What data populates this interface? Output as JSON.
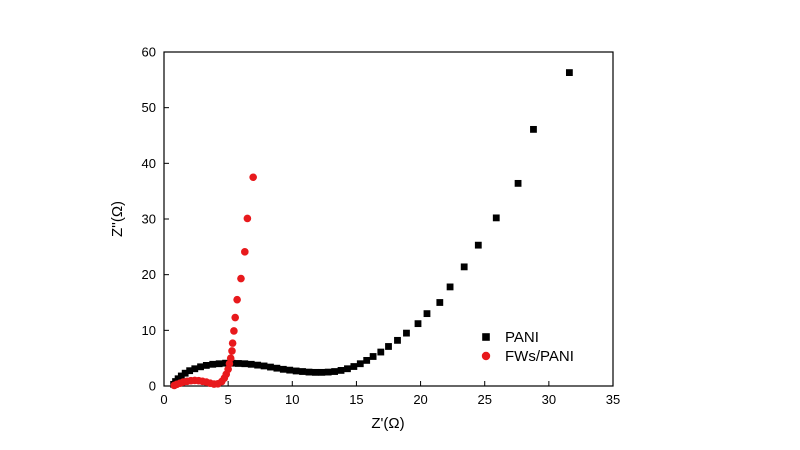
{
  "chart_data": {
    "type": "scatter",
    "title": "",
    "xlabel": "Z'(Ω)",
    "ylabel": "Z''(Ω)",
    "xlim": [
      0,
      35
    ],
    "ylim": [
      0,
      60
    ],
    "x_ticks": [
      0,
      5,
      10,
      15,
      20,
      25,
      30,
      35
    ],
    "y_ticks": [
      0,
      10,
      20,
      30,
      40,
      50,
      60
    ],
    "x_tick_labels": [
      "0",
      "5",
      "10",
      "15",
      "20",
      "25",
      "30",
      "35"
    ],
    "y_tick_labels": [
      "0",
      "10",
      "20",
      "30",
      "40",
      "50",
      "60"
    ],
    "grid": false,
    "legend_position": "lower-right",
    "series": [
      {
        "name": "PANI",
        "marker": "square",
        "color": "#000000",
        "points": [
          [
            0.75,
            0.3
          ],
          [
            0.9,
            0.8
          ],
          [
            1.1,
            1.3
          ],
          [
            1.35,
            1.8
          ],
          [
            1.65,
            2.3
          ],
          [
            2.0,
            2.75
          ],
          [
            2.4,
            3.1
          ],
          [
            2.85,
            3.45
          ],
          [
            3.3,
            3.7
          ],
          [
            3.8,
            3.9
          ],
          [
            4.3,
            4.0
          ],
          [
            4.8,
            4.1
          ],
          [
            5.3,
            4.1
          ],
          [
            5.8,
            4.05
          ],
          [
            6.3,
            4.0
          ],
          [
            6.8,
            3.9
          ],
          [
            7.3,
            3.75
          ],
          [
            7.8,
            3.6
          ],
          [
            8.3,
            3.4
          ],
          [
            8.8,
            3.2
          ],
          [
            9.3,
            3.0
          ],
          [
            9.8,
            2.85
          ],
          [
            10.3,
            2.7
          ],
          [
            10.8,
            2.6
          ],
          [
            11.3,
            2.5
          ],
          [
            11.8,
            2.45
          ],
          [
            12.3,
            2.45
          ],
          [
            12.8,
            2.5
          ],
          [
            13.3,
            2.6
          ],
          [
            13.8,
            2.8
          ],
          [
            14.3,
            3.1
          ],
          [
            14.8,
            3.5
          ],
          [
            15.3,
            4.0
          ],
          [
            15.8,
            4.6
          ],
          [
            16.3,
            5.3
          ],
          [
            16.9,
            6.1
          ],
          [
            17.5,
            7.1
          ],
          [
            18.2,
            8.2
          ],
          [
            18.9,
            9.5
          ],
          [
            19.8,
            11.2
          ],
          [
            20.5,
            13.0
          ],
          [
            21.5,
            15.0
          ],
          [
            22.3,
            17.8
          ],
          [
            23.4,
            21.4
          ],
          [
            24.5,
            25.3
          ],
          [
            25.9,
            30.2
          ],
          [
            27.6,
            36.4
          ],
          [
            28.8,
            46.1
          ],
          [
            31.6,
            56.3
          ]
        ]
      },
      {
        "name": "FWs/PANI",
        "marker": "circle",
        "color": "#e8191c",
        "points": [
          [
            0.8,
            0.1
          ],
          [
            1.0,
            0.3
          ],
          [
            1.25,
            0.5
          ],
          [
            1.5,
            0.7
          ],
          [
            1.8,
            0.85
          ],
          [
            2.1,
            0.95
          ],
          [
            2.4,
            1.0
          ],
          [
            2.7,
            0.95
          ],
          [
            3.0,
            0.85
          ],
          [
            3.3,
            0.7
          ],
          [
            3.6,
            0.5
          ],
          [
            3.9,
            0.35
          ],
          [
            4.2,
            0.4
          ],
          [
            4.5,
            0.8
          ],
          [
            4.7,
            1.4
          ],
          [
            4.85,
            2.1
          ],
          [
            5.0,
            3.0
          ],
          [
            5.1,
            4.0
          ],
          [
            5.2,
            5.0
          ],
          [
            5.3,
            6.3
          ],
          [
            5.35,
            7.7
          ],
          [
            5.45,
            9.9
          ],
          [
            5.55,
            12.3
          ],
          [
            5.7,
            15.5
          ],
          [
            6.0,
            19.3
          ],
          [
            6.3,
            24.1
          ],
          [
            6.5,
            30.1
          ],
          [
            6.95,
            37.5
          ]
        ]
      }
    ]
  }
}
